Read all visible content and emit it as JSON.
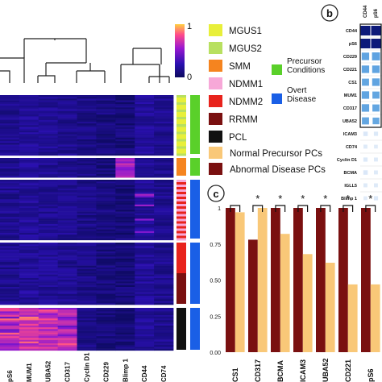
{
  "heatmap": {
    "colorbar_max": "1",
    "colorbar_min": "0",
    "columns": [
      "pS6",
      "MUM1",
      "UBA52",
      "CD317",
      "Cyclin D1",
      "CD229",
      "Blimp 1",
      "CD44",
      "CD74"
    ]
  },
  "legend": {
    "stage_items": [
      {
        "label": "MGUS1",
        "color": "#e8ef3a"
      },
      {
        "label": "MGUS2",
        "color": "#b8e060"
      },
      {
        "label": "SMM",
        "color": "#f5841f"
      },
      {
        "label": "NDMM1",
        "color": "#f7a8d8"
      },
      {
        "label": "NDMM2",
        "color": "#e8231c"
      },
      {
        "label": "RRMM",
        "color": "#7a1010"
      },
      {
        "label": "PCL",
        "color": "#111111"
      }
    ],
    "group_items": [
      {
        "label": "Precursor Conditions",
        "color": "#5ad02a"
      },
      {
        "label": "Overt Disease",
        "color": "#1a5fe6"
      }
    ],
    "pc_items": [
      {
        "label": "Normal Precursor PCs",
        "color": "#f9c878"
      },
      {
        "label": "Abnormal Disease PCs",
        "color": "#7a1010"
      }
    ]
  },
  "panel_b": {
    "letter": "b",
    "col_labels": [
      "CD44",
      "pS6"
    ],
    "row_labels": [
      "CD44",
      "pS6",
      "CD229",
      "CD221",
      "CS1",
      "MUM1",
      "CD317",
      "UBA52",
      "ICAM3",
      "CD74",
      "Cyclin D1",
      "BCMA",
      "IGLL5",
      "Blimp 1"
    ]
  },
  "panel_c": {
    "letter": "c",
    "significance_marker": "*"
  },
  "chart_data": {
    "type": "bar",
    "title": "",
    "xlabel": "",
    "ylabel": "",
    "ylim": [
      0,
      1
    ],
    "yticks": [
      "0.00",
      "0.25",
      "0.50",
      "0.75",
      "1"
    ],
    "categories": [
      "CS1",
      "CD317",
      "BCMA",
      "ICAM3",
      "UBA52",
      "CD221",
      "pS6"
    ],
    "series": [
      {
        "name": "Abnormal Disease PCs",
        "color": "#7a1010",
        "values": [
          1.0,
          0.78,
          1.0,
          1.0,
          1.0,
          1.0,
          1.0
        ]
      },
      {
        "name": "Normal Precursor PCs",
        "color": "#f9c878",
        "values": [
          0.97,
          1.0,
          0.82,
          0.68,
          0.62,
          0.47,
          0.47
        ]
      }
    ],
    "significant": [
      false,
      true,
      true,
      true,
      true,
      true,
      true
    ]
  }
}
